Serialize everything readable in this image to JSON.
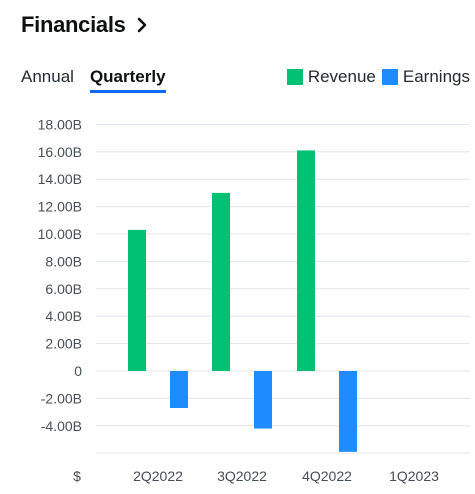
{
  "header": {
    "title": "Financials",
    "chevron_icon": "chevron-right-icon"
  },
  "tabs": [
    {
      "label": "Annual",
      "active": false
    },
    {
      "label": "Quarterly",
      "active": true
    }
  ],
  "colors": {
    "revenue": "#00c073",
    "earnings": "#1e8cff",
    "grid": "#e0e4e9",
    "tab_underline": "#0f69ff"
  },
  "chart_data": {
    "type": "bar",
    "categories": [
      "2Q2022",
      "3Q2022",
      "4Q2022",
      "1Q2023"
    ],
    "series": [
      {
        "name": "Revenue",
        "values": [
          10.3,
          13.0,
          16.1,
          null
        ]
      },
      {
        "name": "Earnings",
        "values": [
          -2.7,
          -4.2,
          -5.9,
          null
        ]
      }
    ],
    "ylim": [
      -6,
      18
    ],
    "yticks": [
      18,
      16,
      14,
      12,
      10,
      8,
      6,
      4,
      2,
      0,
      -2,
      -4
    ],
    "ytick_labels": [
      "18.00B",
      "16.00B",
      "14.00B",
      "12.00B",
      "10.00B",
      "8.00B",
      "6.00B",
      "4.00B",
      "2.00B",
      "0",
      "-2.00B",
      "-4.00B"
    ],
    "xaxis_label": "$",
    "unit": "B",
    "legend_position": "top-right",
    "grid": true
  }
}
